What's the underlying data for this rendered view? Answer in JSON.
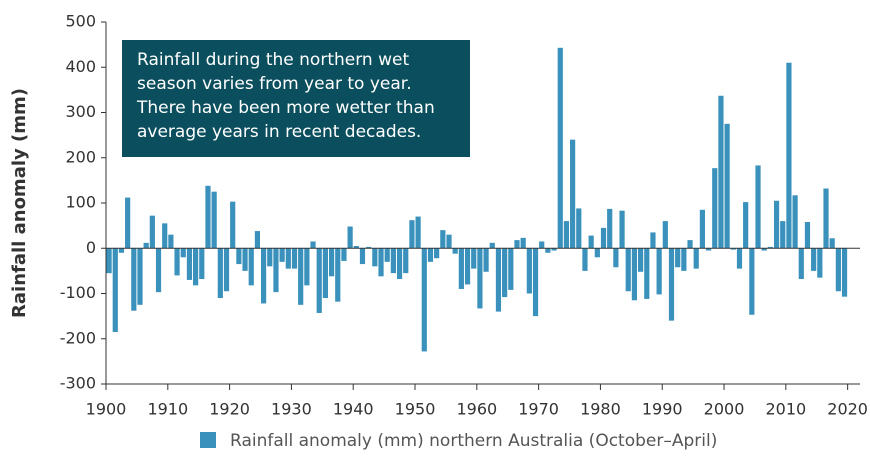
{
  "chart_data": {
    "type": "bar",
    "y_label": "Rainfall anomaly (mm)",
    "annotation": [
      "Rainfall during the northern wet",
      "season varies from year to year.",
      "There have been more wetter than",
      "average years in recent decades."
    ],
    "series": [
      {
        "name": "Rainfall anomaly (mm) northern Australia (October–April)",
        "color": "#3a91bb",
        "values": [
          -55,
          -185,
          -10,
          112,
          -138,
          -125,
          12,
          72,
          -97,
          55,
          30,
          -60,
          -20,
          -70,
          -82,
          -68,
          138,
          125,
          -110,
          -95,
          103,
          -35,
          -50,
          -82,
          38,
          -122,
          -40,
          -97,
          -30,
          -45,
          -45,
          -125,
          -82,
          15,
          -143,
          -110,
          -62,
          -118,
          -28,
          48,
          5,
          -35,
          3,
          -40,
          -62,
          -30,
          -55,
          -68,
          -55,
          62,
          70,
          -228,
          -30,
          -22,
          40,
          30,
          -12,
          -90,
          -80,
          -45,
          -133,
          -52,
          12,
          -140,
          -108,
          -92,
          18,
          23,
          -100,
          -150,
          15,
          -10,
          -5,
          443,
          60,
          240,
          88,
          -50,
          28,
          -20,
          45,
          87,
          -42,
          83,
          -95,
          -115,
          -52,
          -112,
          35,
          -102,
          60,
          -160,
          -42,
          -50,
          18,
          -45,
          85,
          -5,
          177,
          337,
          275,
          -3,
          -45,
          102,
          -147,
          183,
          -5,
          3,
          105,
          60,
          410,
          117,
          -68,
          58,
          -50,
          -65,
          132,
          22,
          -95,
          -107
        ]
      }
    ],
    "x": [
      1900,
      1901,
      1902,
      1903,
      1904,
      1905,
      1906,
      1907,
      1908,
      1909,
      1910,
      1911,
      1912,
      1913,
      1914,
      1915,
      1916,
      1917,
      1918,
      1919,
      1920,
      1921,
      1922,
      1923,
      1924,
      1925,
      1926,
      1927,
      1928,
      1929,
      1930,
      1931,
      1932,
      1933,
      1934,
      1935,
      1936,
      1937,
      1938,
      1939,
      1940,
      1941,
      1942,
      1943,
      1944,
      1945,
      1946,
      1947,
      1948,
      1949,
      1950,
      1951,
      1952,
      1953,
      1954,
      1955,
      1956,
      1957,
      1958,
      1959,
      1960,
      1961,
      1962,
      1963,
      1964,
      1965,
      1966,
      1967,
      1968,
      1969,
      1970,
      1971,
      1972,
      1973,
      1974,
      1975,
      1976,
      1977,
      1978,
      1979,
      1980,
      1981,
      1982,
      1983,
      1984,
      1985,
      1986,
      1987,
      1988,
      1989,
      1990,
      1991,
      1992,
      1993,
      1994,
      1995,
      1996,
      1997,
      1998,
      1999,
      2000,
      2001,
      2002,
      2003,
      2004,
      2005,
      2006,
      2007,
      2008,
      2009,
      2010,
      2011,
      2012,
      2013,
      2014,
      2015,
      2016,
      2017,
      2018,
      2019
    ],
    "xlim": [
      1900,
      2022
    ],
    "xticks": [
      1900,
      1910,
      1920,
      1930,
      1940,
      1950,
      1960,
      1970,
      1980,
      1990,
      2000,
      2010,
      2020
    ],
    "ylim": [
      -300,
      500
    ],
    "yticks": [
      -300,
      -200,
      -100,
      0,
      100,
      200,
      300,
      400,
      500
    ],
    "grid": false,
    "legend": "bottom"
  }
}
